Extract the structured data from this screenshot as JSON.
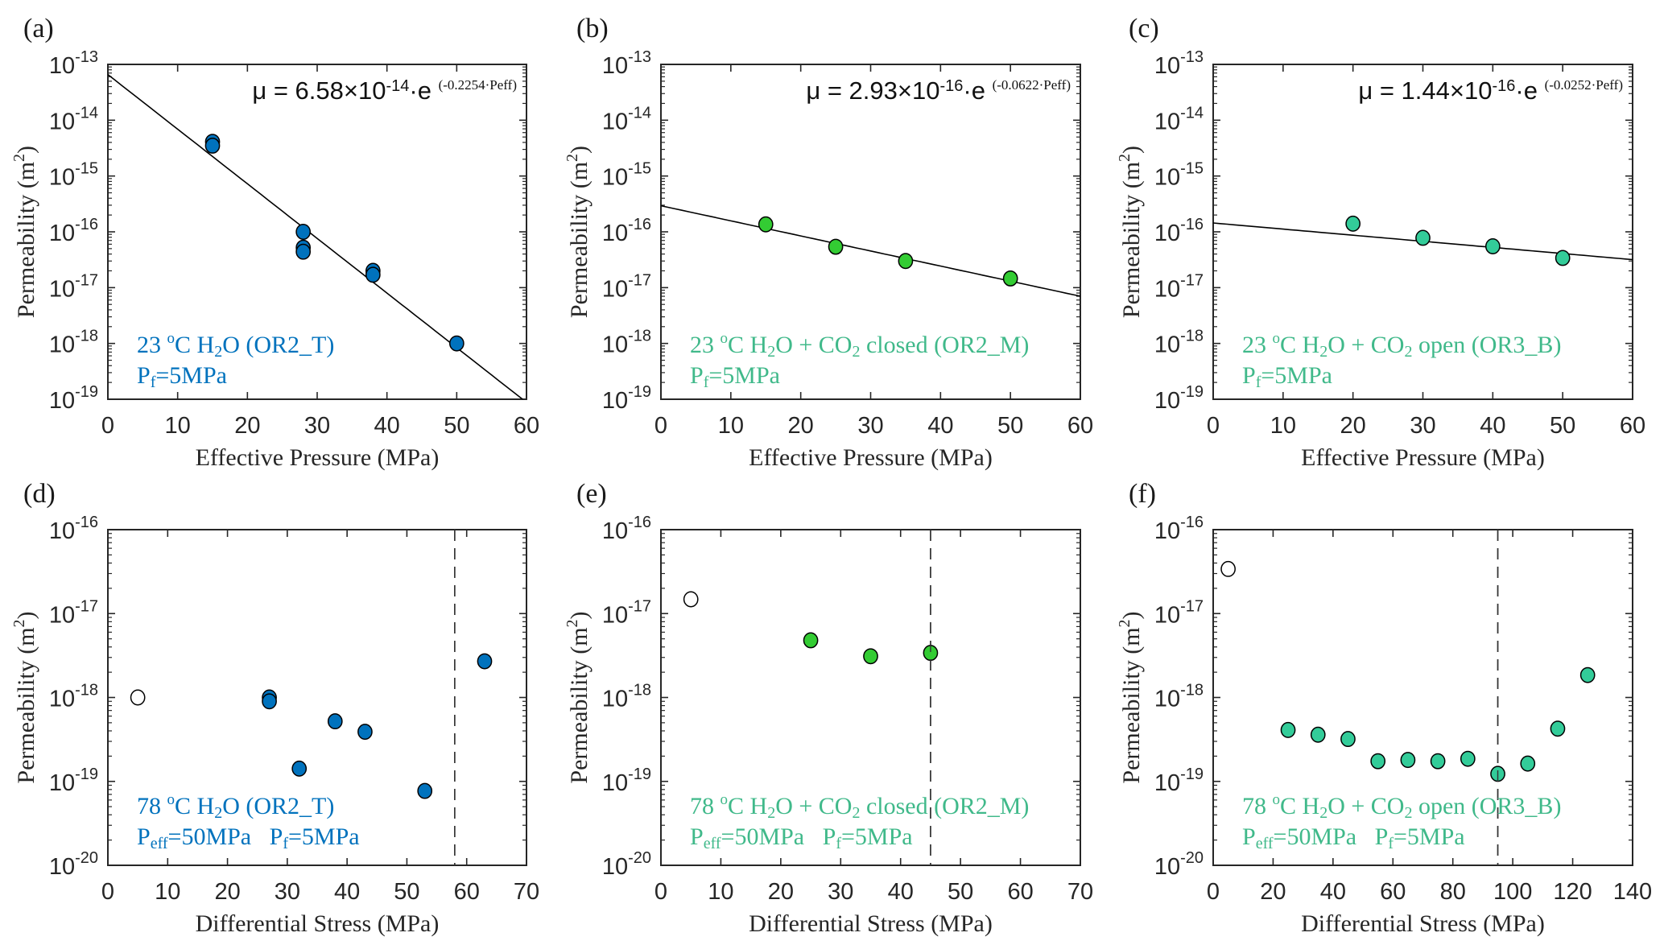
{
  "figure": {
    "colors": {
      "blue": "#0072BD",
      "green": "#33CC33",
      "teal": "#33CC99",
      "text_teal": "#40B98A",
      "axis": "#262626",
      "fit_line": "#000000",
      "dashed_line": "#333333",
      "open_marker_fill": "#FFFFFF"
    }
  },
  "chart_data": [
    {
      "id": "a",
      "panel_label": "(a)",
      "type": "scatter",
      "xlabel": "Effective Pressure (MPa)",
      "ylabel": "Permeability (m²)",
      "ylabel_base": "Permeability (m",
      "ylabel_sup": "2",
      "ylabel_end": ")",
      "xlim": [
        0,
        60
      ],
      "ylim_log10": [
        -19,
        -13
      ],
      "y_scale": "log",
      "xticks": [
        0,
        10,
        20,
        30,
        40,
        50,
        60
      ],
      "yticks_exp": [
        -13,
        -14,
        -15,
        -16,
        -17,
        -18,
        -19
      ],
      "marker_color": "blue",
      "points": [
        {
          "x": 15,
          "y": 4.1e-15
        },
        {
          "x": 15,
          "y": 3.5e-15
        },
        {
          "x": 28,
          "y": 1e-16
        },
        {
          "x": 28,
          "y": 5.2e-17
        },
        {
          "x": 28,
          "y": 4.4e-17
        },
        {
          "x": 38,
          "y": 2e-17
        },
        {
          "x": 38,
          "y": 1.7e-17
        },
        {
          "x": 50,
          "y": 1e-18
        }
      ],
      "fit": {
        "a": 6.58e-14,
        "b": -0.2254
      },
      "equation": {
        "lhs": "μ = 6.58×10",
        "exp": "-14",
        "mid": "·e ",
        "sup": "(-0.2254·P",
        "sup_sub": "eff",
        "sup_end": ")"
      },
      "annotation": {
        "color": "blue",
        "line1": {
          "t1": "23 ",
          "deg": "o",
          "t2": "C H",
          "sub": "2",
          "t3": "O (OR2_T)"
        },
        "line2": [
          {
            "P": "P",
            "sub": "f",
            "rest": "=5MPa"
          }
        ]
      }
    },
    {
      "id": "b",
      "panel_label": "(b)",
      "type": "scatter",
      "xlabel": "Effective Pressure (MPa)",
      "ylabel": "Permeability (m²)",
      "ylabel_base": "Permeability (m",
      "ylabel_sup": "2",
      "ylabel_end": ")",
      "xlim": [
        0,
        60
      ],
      "ylim_log10": [
        -19,
        -13
      ],
      "y_scale": "log",
      "xticks": [
        0,
        10,
        20,
        30,
        40,
        50,
        60
      ],
      "yticks_exp": [
        -13,
        -14,
        -15,
        -16,
        -17,
        -18,
        -19
      ],
      "marker_color": "green",
      "points": [
        {
          "x": 15,
          "y": 1.36e-16
        },
        {
          "x": 25,
          "y": 5.4e-17
        },
        {
          "x": 35,
          "y": 3e-17
        },
        {
          "x": 50,
          "y": 1.46e-17
        }
      ],
      "fit": {
        "a": 2.93e-16,
        "b": -0.0622
      },
      "equation": {
        "lhs": "μ = 2.93×10",
        "exp": "-16",
        "mid": "·e ",
        "sup": "(-0.0622·P",
        "sup_sub": "eff",
        "sup_end": ")"
      },
      "annotation": {
        "color": "text_teal",
        "line1": {
          "t1": "23 ",
          "deg": "o",
          "t2": "C H",
          "sub": "2",
          "t3": "O + CO",
          "sub2": "2",
          "t4": " closed (OR2_M)"
        },
        "line2": [
          {
            "P": "P",
            "sub": "f",
            "rest": "=5MPa"
          }
        ]
      }
    },
    {
      "id": "c",
      "panel_label": "(c)",
      "type": "scatter",
      "xlabel": "Effective Pressure (MPa)",
      "ylabel": "Permeability (m²)",
      "ylabel_base": "Permeability (m",
      "ylabel_sup": "2",
      "ylabel_end": ")",
      "xlim": [
        0,
        60
      ],
      "ylim_log10": [
        -19,
        -13
      ],
      "y_scale": "log",
      "xticks": [
        0,
        10,
        20,
        30,
        40,
        50,
        60
      ],
      "yticks_exp": [
        -13,
        -14,
        -15,
        -16,
        -17,
        -18,
        -19
      ],
      "marker_color": "teal",
      "points": [
        {
          "x": 20,
          "y": 1.4e-16
        },
        {
          "x": 30,
          "y": 7.8e-17
        },
        {
          "x": 40,
          "y": 5.5e-17
        },
        {
          "x": 50,
          "y": 3.4e-17
        }
      ],
      "fit": {
        "a": 1.44e-16,
        "b": -0.0252
      },
      "equation": {
        "lhs": "μ = 1.44×10",
        "exp": "-16",
        "mid": "·e ",
        "sup": "(-0.0252·P",
        "sup_sub": "eff",
        "sup_end": ")"
      },
      "annotation": {
        "color": "text_teal",
        "line1": {
          "t1": "23 ",
          "deg": "o",
          "t2": "C H",
          "sub": "2",
          "t3": "O + CO",
          "sub2": "2",
          "t4": " open (OR3_B)"
        },
        "line2": [
          {
            "P": "P",
            "sub": "f",
            "rest": "=5MPa"
          }
        ]
      }
    },
    {
      "id": "d",
      "panel_label": "(d)",
      "type": "scatter",
      "xlabel": "Differential Stress (MPa)",
      "ylabel": "Permeability (m²)",
      "ylabel_base": "Permeability (m",
      "ylabel_sup": "2",
      "ylabel_end": ")",
      "xlim": [
        0,
        70
      ],
      "ylim_log10": [
        -20,
        -16
      ],
      "y_scale": "log",
      "xticks": [
        0,
        10,
        20,
        30,
        40,
        50,
        60,
        70
      ],
      "yticks_exp": [
        -16,
        -17,
        -18,
        -19,
        -20
      ],
      "marker_color": "blue",
      "open_points": [
        {
          "x": 5,
          "y": 1e-18
        }
      ],
      "points": [
        {
          "x": 27,
          "y": 1e-18
        },
        {
          "x": 27,
          "y": 9e-19
        },
        {
          "x": 32,
          "y": 1.42e-19
        },
        {
          "x": 38,
          "y": 5.2e-19
        },
        {
          "x": 43,
          "y": 3.9e-19
        },
        {
          "x": 53,
          "y": 7.7e-20
        },
        {
          "x": 63,
          "y": 2.7e-18
        }
      ],
      "vline_x": 58,
      "annotation": {
        "color": "blue",
        "line1": {
          "t1": "78 ",
          "deg": "o",
          "t2": "C H",
          "sub": "2",
          "t3": "O (OR2_T)"
        },
        "line2": [
          {
            "P": "P",
            "sub": "eff",
            "rest": "=50MPa"
          },
          {
            "P": "P",
            "sub": "f",
            "rest": "=5MPa"
          }
        ]
      }
    },
    {
      "id": "e",
      "panel_label": "(e)",
      "type": "scatter",
      "xlabel": "Differential Stress (MPa)",
      "ylabel": "Permeability (m²)",
      "ylabel_base": "Permeability (m",
      "ylabel_sup": "2",
      "ylabel_end": ")",
      "xlim": [
        0,
        70
      ],
      "ylim_log10": [
        -20,
        -16
      ],
      "y_scale": "log",
      "xticks": [
        0,
        10,
        20,
        30,
        40,
        50,
        60,
        70
      ],
      "yticks_exp": [
        -16,
        -17,
        -18,
        -19,
        -20
      ],
      "marker_color": "green",
      "open_points": [
        {
          "x": 5,
          "y": 1.48e-17
        }
      ],
      "points": [
        {
          "x": 25,
          "y": 4.8e-18
        },
        {
          "x": 35,
          "y": 3.1e-18
        },
        {
          "x": 45,
          "y": 3.4e-18
        }
      ],
      "vline_x": 45,
      "annotation": {
        "color": "text_teal",
        "line1": {
          "t1": "78 ",
          "deg": "o",
          "t2": "C H",
          "sub": "2",
          "t3": "O + CO",
          "sub2": "2",
          "t4": " closed (OR2_M)"
        },
        "line2": [
          {
            "P": "P",
            "sub": "eff",
            "rest": "=50MPa"
          },
          {
            "P": "P",
            "sub": "f",
            "rest": "=5MPa"
          }
        ]
      }
    },
    {
      "id": "f",
      "panel_label": "(f)",
      "type": "scatter",
      "xlabel": "Differential Stress (MPa)",
      "ylabel": "Permeability (m²)",
      "ylabel_base": "Permeability (m",
      "ylabel_sup": "2",
      "ylabel_end": ")",
      "xlim": [
        0,
        140
      ],
      "ylim_log10": [
        -20,
        -16
      ],
      "y_scale": "log",
      "xticks": [
        0,
        20,
        40,
        60,
        80,
        100,
        120,
        140
      ],
      "yticks_exp": [
        -16,
        -17,
        -18,
        -19,
        -20
      ],
      "marker_color": "teal",
      "open_points": [
        {
          "x": 5,
          "y": 3.4e-17
        }
      ],
      "points": [
        {
          "x": 25,
          "y": 4.1e-19
        },
        {
          "x": 35,
          "y": 3.6e-19
        },
        {
          "x": 45,
          "y": 3.2e-19
        },
        {
          "x": 55,
          "y": 1.74e-19
        },
        {
          "x": 65,
          "y": 1.8e-19
        },
        {
          "x": 75,
          "y": 1.74e-19
        },
        {
          "x": 85,
          "y": 1.86e-19
        },
        {
          "x": 95,
          "y": 1.23e-19
        },
        {
          "x": 105,
          "y": 1.63e-19
        },
        {
          "x": 115,
          "y": 4.25e-19
        },
        {
          "x": 125,
          "y": 1.85e-18
        }
      ],
      "vline_x": 95,
      "annotation": {
        "color": "text_teal",
        "line1": {
          "t1": "78 ",
          "deg": "o",
          "t2": "C H",
          "sub": "2",
          "t3": "O + CO",
          "sub2": "2",
          "t4": " open (OR3_B)"
        },
        "line2": [
          {
            "P": "P",
            "sub": "eff",
            "rest": "=50MPa"
          },
          {
            "P": "P",
            "sub": "f",
            "rest": "=5MPa"
          }
        ]
      }
    }
  ]
}
